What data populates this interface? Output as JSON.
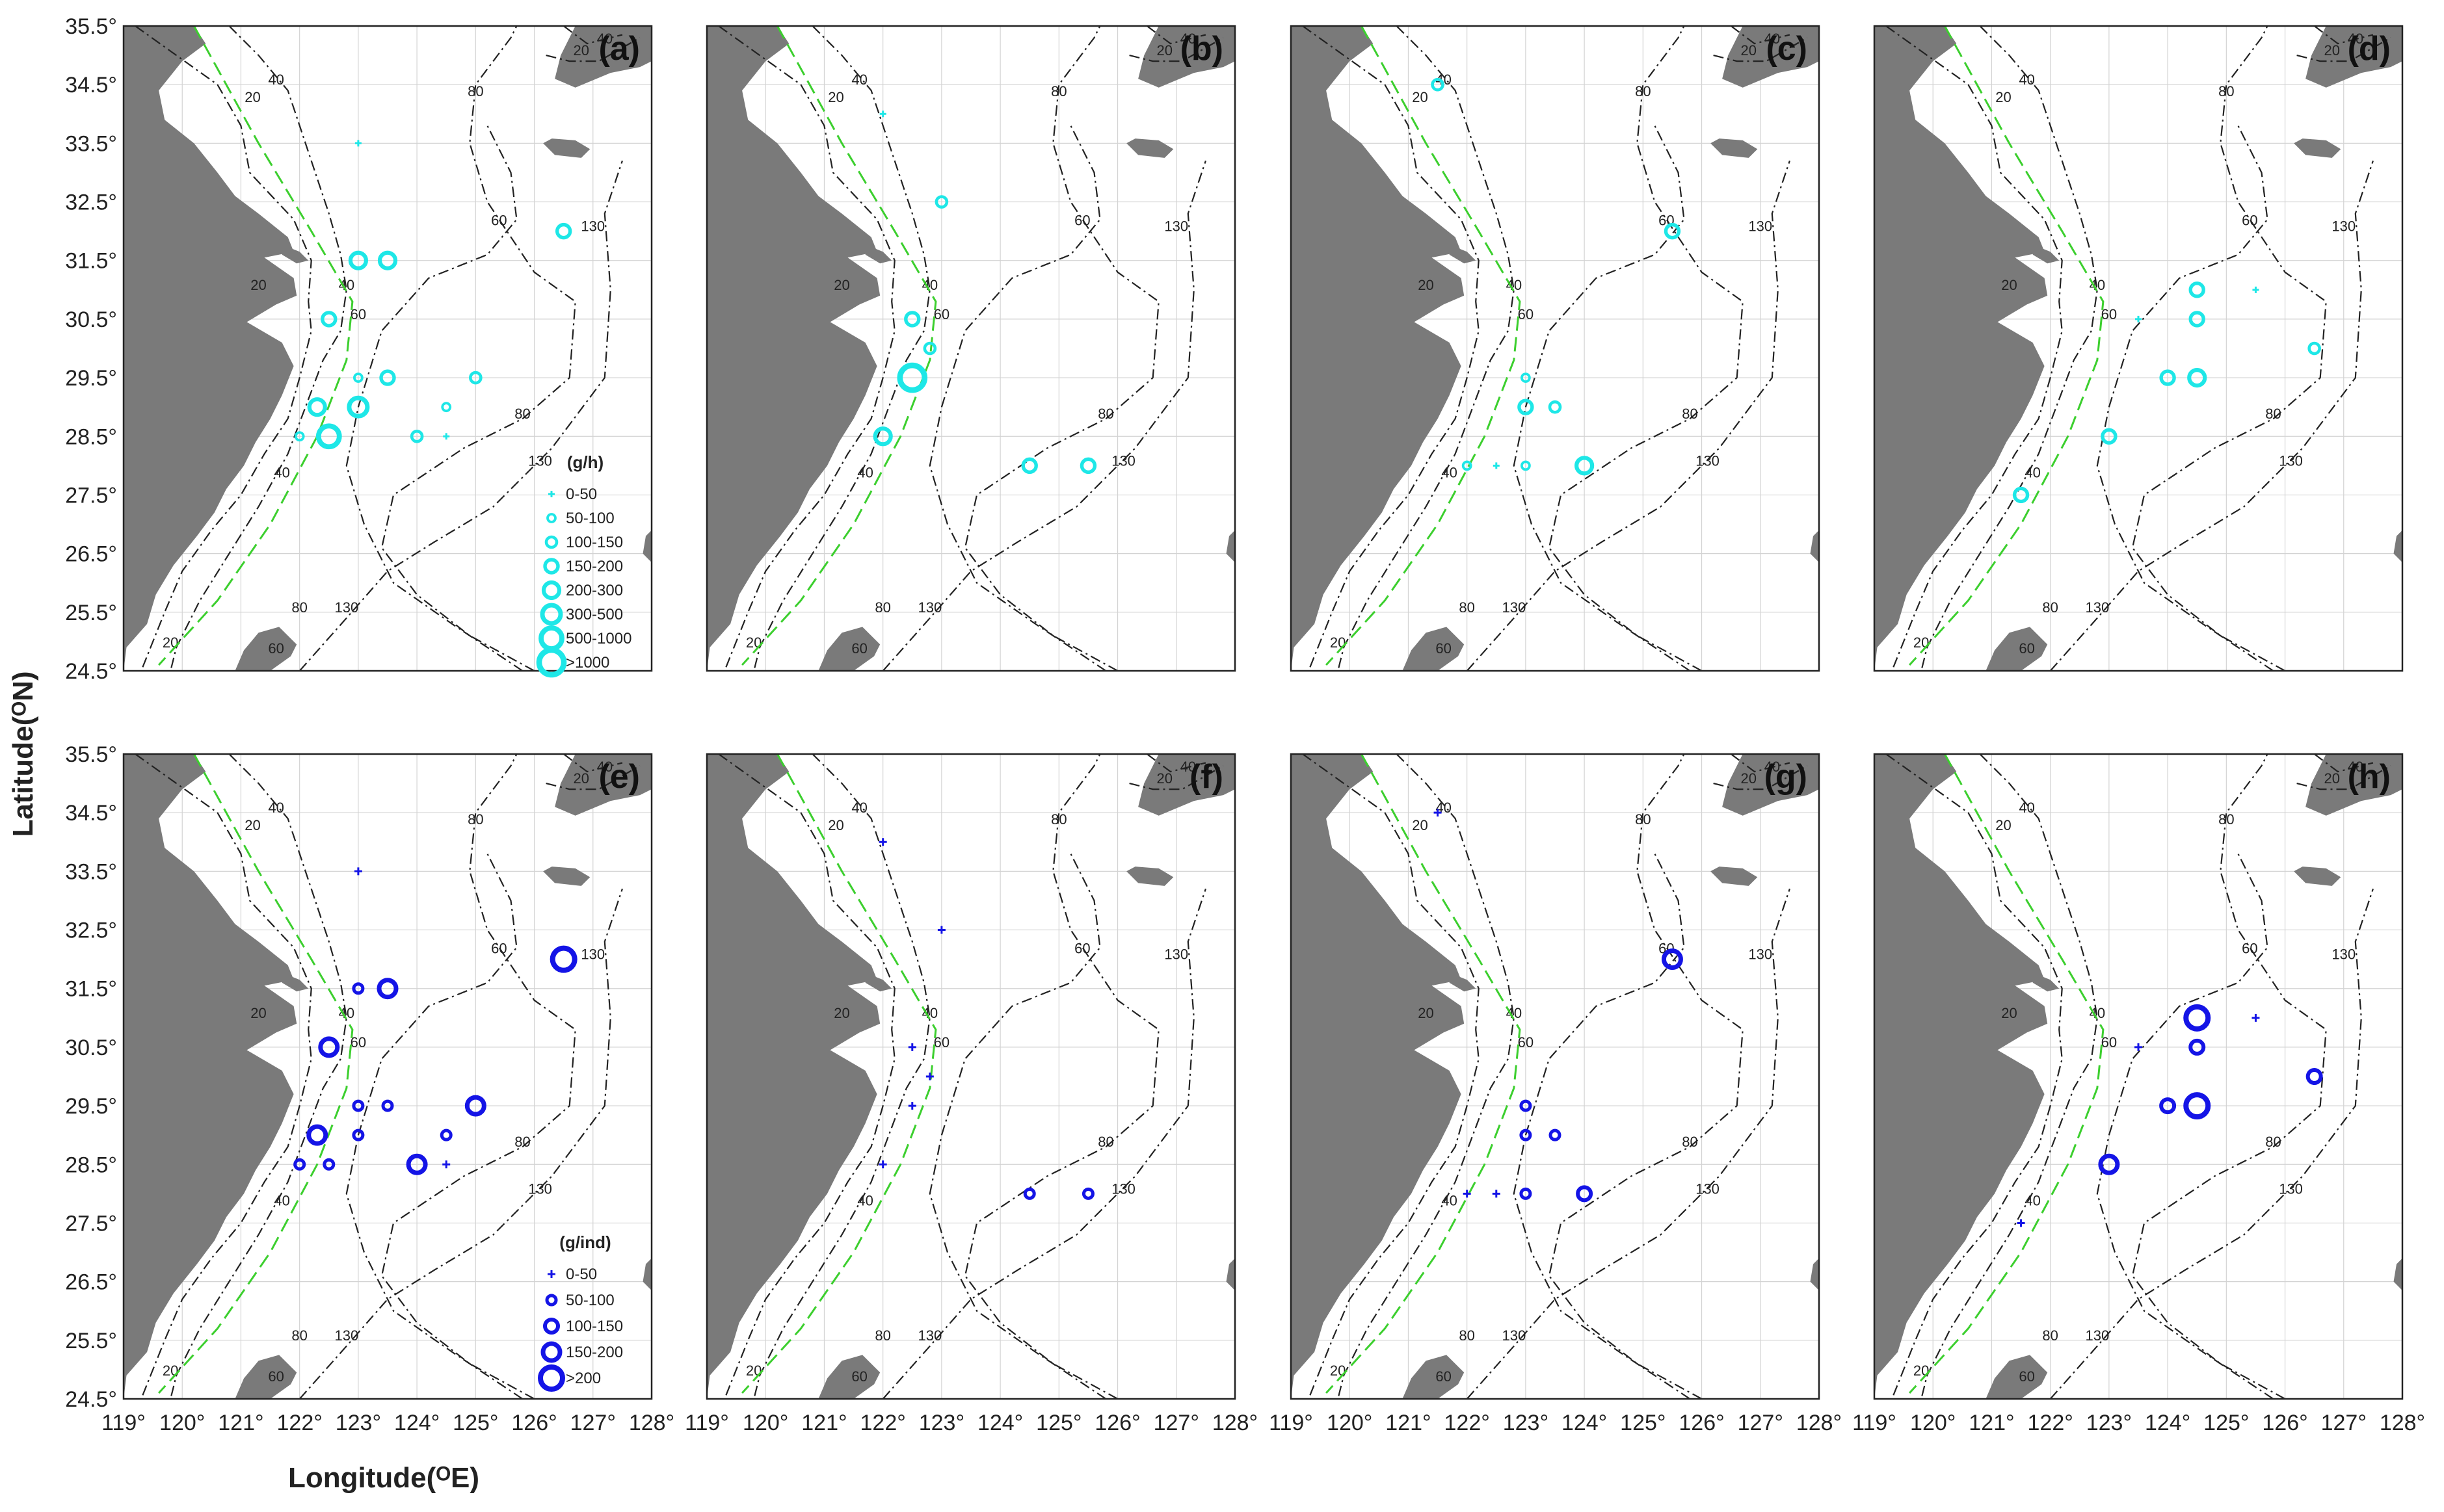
{
  "figure": {
    "y_axis_title": "Latitude(ᴼN)",
    "x_axis_title": "Longitude(ᴼE)"
  },
  "axes": {
    "x_ticks": [
      "119°",
      "120°",
      "121°",
      "122°",
      "123°",
      "124°",
      "125°",
      "126°",
      "127°",
      "128°"
    ],
    "y_ticks": [
      "35.5°",
      "34.5°",
      "33.5°",
      "32.5°",
      "31.5°",
      "30.5°",
      "29.5°",
      "28.5°",
      "27.5°",
      "26.5°",
      "25.5°",
      "24.5°"
    ],
    "lon_range": [
      119,
      128
    ],
    "lat_range": [
      24.5,
      35.5
    ]
  },
  "colors": {
    "top_row_marker": "#1ee7e7",
    "bottom_row_marker": "#1414e6",
    "land": "#7a7a7a",
    "frontline": "#3ccf2e"
  },
  "contour_labels": [
    "20",
    "40",
    "60",
    "80",
    "130"
  ],
  "legends": {
    "top": {
      "title": "(g/h)",
      "classes": [
        "0-50",
        "50-100",
        "100-150",
        "150-200",
        "200-300",
        "300-500",
        "500-1000",
        ">1000"
      ]
    },
    "bottom": {
      "title": "(g/ind)",
      "classes": [
        "0-50",
        "50-100",
        "100-150",
        "150-200",
        ">200"
      ]
    }
  },
  "panels": [
    {
      "label": "(a)",
      "row": "top",
      "legend": "top",
      "points": [
        [
          123.0,
          33.5,
          0
        ],
        [
          123.0,
          31.5,
          4
        ],
        [
          123.5,
          31.5,
          4
        ],
        [
          126.5,
          32.0,
          3
        ],
        [
          122.5,
          30.5,
          3
        ],
        [
          123.0,
          29.5,
          1
        ],
        [
          123.5,
          29.5,
          3
        ],
        [
          125.0,
          29.5,
          2
        ],
        [
          122.3,
          29.0,
          4
        ],
        [
          123.0,
          29.0,
          5
        ],
        [
          124.5,
          29.0,
          1
        ],
        [
          122.0,
          28.5,
          1
        ],
        [
          122.5,
          28.5,
          6
        ],
        [
          124.0,
          28.5,
          2
        ],
        [
          124.5,
          28.5,
          0
        ]
      ]
    },
    {
      "label": "(b)",
      "row": "top",
      "legend": null,
      "points": [
        [
          122.0,
          34.0,
          0
        ],
        [
          123.0,
          32.5,
          2
        ],
        [
          122.5,
          30.5,
          3
        ],
        [
          122.8,
          30.0,
          2
        ],
        [
          122.5,
          29.5,
          7
        ],
        [
          122.0,
          28.5,
          4
        ],
        [
          124.5,
          28.0,
          3
        ],
        [
          125.5,
          28.0,
          3
        ]
      ]
    },
    {
      "label": "(c)",
      "row": "top",
      "legend": null,
      "points": [
        [
          121.5,
          34.5,
          2
        ],
        [
          125.5,
          32.0,
          3
        ],
        [
          123.0,
          29.5,
          1
        ],
        [
          123.0,
          29.0,
          3
        ],
        [
          123.5,
          29.0,
          2
        ],
        [
          122.0,
          28.0,
          1
        ],
        [
          122.5,
          28.0,
          0
        ],
        [
          123.0,
          28.0,
          1
        ],
        [
          124.0,
          28.0,
          4
        ]
      ]
    },
    {
      "label": "(d)",
      "row": "top",
      "legend": null,
      "points": [
        [
          124.5,
          31.0,
          3
        ],
        [
          125.5,
          31.0,
          0
        ],
        [
          124.5,
          30.5,
          3
        ],
        [
          123.5,
          30.5,
          0
        ],
        [
          126.5,
          30.0,
          2
        ],
        [
          124.0,
          29.5,
          3
        ],
        [
          124.5,
          29.5,
          4
        ],
        [
          123.0,
          28.5,
          3
        ],
        [
          121.5,
          27.5,
          3
        ]
      ]
    },
    {
      "label": "(e)",
      "row": "bottom",
      "legend": "bottom",
      "points": [
        [
          123.0,
          33.5,
          0
        ],
        [
          123.0,
          31.5,
          1
        ],
        [
          123.5,
          31.5,
          3
        ],
        [
          126.5,
          32.0,
          4
        ],
        [
          122.5,
          30.5,
          3
        ],
        [
          123.0,
          29.5,
          1
        ],
        [
          123.5,
          29.5,
          1
        ],
        [
          125.0,
          29.5,
          3
        ],
        [
          122.3,
          29.0,
          3
        ],
        [
          123.0,
          29.0,
          1
        ],
        [
          124.5,
          29.0,
          1
        ],
        [
          122.0,
          28.5,
          1
        ],
        [
          122.5,
          28.5,
          1
        ],
        [
          124.0,
          28.5,
          3
        ],
        [
          124.5,
          28.5,
          0
        ]
      ]
    },
    {
      "label": "(f)",
      "row": "bottom",
      "legend": null,
      "points": [
        [
          122.0,
          34.0,
          0
        ],
        [
          123.0,
          32.5,
          0
        ],
        [
          122.5,
          30.5,
          0
        ],
        [
          122.8,
          30.0,
          0
        ],
        [
          122.5,
          29.5,
          0
        ],
        [
          122.0,
          28.5,
          0
        ],
        [
          124.5,
          28.0,
          1
        ],
        [
          125.5,
          28.0,
          1
        ]
      ]
    },
    {
      "label": "(g)",
      "row": "bottom",
      "legend": null,
      "points": [
        [
          121.5,
          34.5,
          0
        ],
        [
          125.5,
          32.0,
          3
        ],
        [
          123.0,
          29.5,
          1
        ],
        [
          123.0,
          29.0,
          1
        ],
        [
          123.5,
          29.0,
          1
        ],
        [
          122.0,
          28.0,
          0
        ],
        [
          122.5,
          28.0,
          0
        ],
        [
          123.0,
          28.0,
          1
        ],
        [
          124.0,
          28.0,
          2
        ]
      ]
    },
    {
      "label": "(h)",
      "row": "bottom",
      "legend": null,
      "points": [
        [
          124.5,
          31.0,
          4
        ],
        [
          125.5,
          31.0,
          0
        ],
        [
          124.5,
          30.5,
          2
        ],
        [
          123.5,
          30.5,
          0
        ],
        [
          126.5,
          30.0,
          2
        ],
        [
          124.0,
          29.5,
          2
        ],
        [
          124.5,
          29.5,
          4
        ],
        [
          123.0,
          28.5,
          3
        ],
        [
          121.5,
          27.5,
          0
        ]
      ]
    }
  ]
}
